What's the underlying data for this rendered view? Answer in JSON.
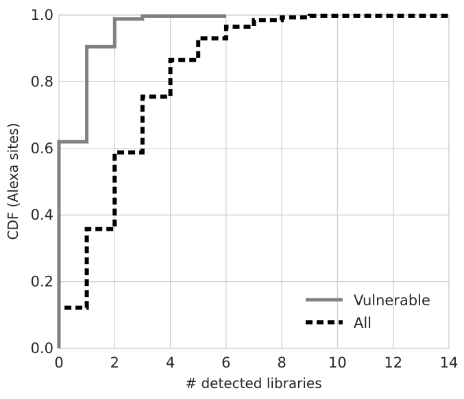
{
  "chart_data": {
    "type": "line",
    "step": true,
    "xlabel": "# detected libraries",
    "ylabel": "CDF (Alexa sites)",
    "xlim": [
      0,
      14
    ],
    "ylim": [
      0.0,
      1.0
    ],
    "xticks": [
      0,
      2,
      4,
      6,
      8,
      10,
      12,
      14
    ],
    "yticks": [
      0.0,
      0.2,
      0.4,
      0.6,
      0.8,
      1.0
    ],
    "ytick_labels": [
      "0.0",
      "0.2",
      "0.4",
      "0.6",
      "0.8",
      "1.0"
    ],
    "grid": true,
    "legend_position": "lower-right",
    "series": [
      {
        "name": "Vulnerable",
        "color": "#808080",
        "style": "solid",
        "x": [
          0,
          0,
          1,
          1,
          2,
          2,
          3,
          3,
          6
        ],
        "y": [
          0.0,
          0.62,
          0.62,
          0.905,
          0.905,
          0.988,
          0.988,
          0.997,
          0.997
        ]
      },
      {
        "name": "All",
        "color": "#000000",
        "style": "dashed",
        "x": [
          0.2,
          1,
          1,
          2,
          2,
          3,
          3,
          4,
          4,
          5,
          5,
          6,
          6,
          7,
          7,
          8,
          8,
          9,
          9,
          14
        ],
        "y": [
          0.122,
          0.122,
          0.358,
          0.358,
          0.588,
          0.588,
          0.755,
          0.755,
          0.865,
          0.865,
          0.93,
          0.93,
          0.965,
          0.965,
          0.985,
          0.985,
          0.993,
          0.993,
          0.998,
          0.998
        ]
      }
    ]
  }
}
